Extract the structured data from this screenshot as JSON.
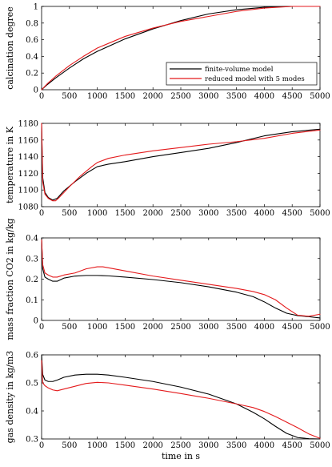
{
  "colors": {
    "finite_volume": "#000000",
    "reduced": "#e41a1c"
  },
  "chart_data": [
    {
      "type": "line",
      "ylabel": "calcination degree",
      "xlabel": "",
      "xlim": [
        0,
        5000
      ],
      "ylim": [
        0,
        1
      ],
      "xticks": [
        0,
        500,
        1000,
        1500,
        2000,
        2500,
        3000,
        3500,
        4000,
        4500,
        5000
      ],
      "yticks": [
        0,
        0.2,
        0.4,
        0.6,
        0.8,
        1
      ],
      "ytick_labels": [
        "0",
        "0.2",
        "0.4",
        "0.6",
        "0.8",
        "1"
      ],
      "legend": {
        "position": "lower-right",
        "entries": [
          "finite-volume model",
          "reduced model with 5 modes"
        ]
      },
      "series": [
        {
          "name": "finite-volume model",
          "color_key": "finite_volume",
          "x": [
            0,
            100,
            250,
            500,
            750,
            1000,
            1500,
            2000,
            2500,
            3000,
            3500,
            4000,
            4500,
            5000
          ],
          "y": [
            0,
            0.06,
            0.14,
            0.26,
            0.37,
            0.46,
            0.61,
            0.73,
            0.83,
            0.91,
            0.96,
            0.99,
            1.0,
            1.0
          ]
        },
        {
          "name": "reduced model with 5 modes",
          "color_key": "reduced",
          "x": [
            0,
            100,
            250,
            500,
            750,
            1000,
            1500,
            2000,
            2500,
            3000,
            3500,
            4000,
            4500,
            5000
          ],
          "y": [
            0,
            0.07,
            0.16,
            0.29,
            0.4,
            0.5,
            0.64,
            0.74,
            0.82,
            0.88,
            0.94,
            0.98,
            1.0,
            1.0
          ]
        }
      ]
    },
    {
      "type": "line",
      "ylabel": "temperature in K",
      "xlabel": "",
      "xlim": [
        0,
        5000
      ],
      "ylim": [
        1080,
        1180
      ],
      "xticks": [
        0,
        500,
        1000,
        1500,
        2000,
        2500,
        3000,
        3500,
        4000,
        4500,
        5000
      ],
      "yticks": [
        1080,
        1100,
        1120,
        1140,
        1160,
        1180
      ],
      "ytick_labels": [
        "1080",
        "1100",
        "1120",
        "1140",
        "1160",
        "1180"
      ],
      "series": [
        {
          "name": "finite-volume model",
          "color_key": "finite_volume",
          "x": [
            0,
            20,
            60,
            120,
            200,
            280,
            400,
            600,
            800,
            1000,
            1200,
            1500,
            2000,
            2500,
            3000,
            3500,
            4000,
            4500,
            5000
          ],
          "y": [
            1180,
            1115,
            1097,
            1091,
            1088,
            1090,
            1099,
            1110,
            1120,
            1128,
            1131,
            1134,
            1140,
            1145,
            1150,
            1157,
            1165,
            1170,
            1173
          ]
        },
        {
          "name": "reduced model with 5 modes",
          "color_key": "reduced",
          "x": [
            0,
            20,
            60,
            120,
            200,
            250,
            300,
            400,
            500,
            700,
            900,
            1000,
            1200,
            1500,
            2000,
            2500,
            3000,
            3500,
            4000,
            4500,
            5000
          ],
          "y": [
            1180,
            1110,
            1095,
            1090,
            1087,
            1087,
            1090,
            1097,
            1104,
            1117,
            1128,
            1133,
            1138,
            1142,
            1147,
            1151,
            1155,
            1158,
            1162,
            1168,
            1172
          ]
        }
      ]
    },
    {
      "type": "line",
      "ylabel": "mass fraction CO2 in kg/kg",
      "xlabel": "",
      "xlim": [
        0,
        5000
      ],
      "ylim": [
        0,
        0.4
      ],
      "xticks": [
        0,
        500,
        1000,
        1500,
        2000,
        2500,
        3000,
        3500,
        4000,
        4500,
        5000
      ],
      "yticks": [
        0,
        0.1,
        0.2,
        0.3,
        0.4
      ],
      "ytick_labels": [
        "0",
        "0.1",
        "0.2",
        "0.3",
        "0.4"
      ],
      "series": [
        {
          "name": "finite-volume model",
          "color_key": "finite_volume",
          "x": [
            0,
            20,
            60,
            120,
            200,
            280,
            400,
            600,
            800,
            1000,
            1200,
            1500,
            2000,
            2500,
            3000,
            3500,
            3800,
            4000,
            4200,
            4400,
            4600,
            4800,
            5000
          ],
          "y": [
            0.4,
            0.25,
            0.21,
            0.2,
            0.19,
            0.19,
            0.205,
            0.215,
            0.218,
            0.218,
            0.216,
            0.21,
            0.198,
            0.183,
            0.163,
            0.137,
            0.115,
            0.09,
            0.06,
            0.035,
            0.023,
            0.018,
            0.012
          ]
        },
        {
          "name": "reduced model with 5 modes",
          "color_key": "reduced",
          "x": [
            0,
            20,
            60,
            120,
            200,
            280,
            400,
            600,
            800,
            1000,
            1100,
            1200,
            1500,
            2000,
            2500,
            3000,
            3500,
            3800,
            4000,
            4200,
            4400,
            4600,
            4800,
            5000
          ],
          "y": [
            0.39,
            0.27,
            0.23,
            0.22,
            0.21,
            0.21,
            0.22,
            0.23,
            0.25,
            0.26,
            0.26,
            0.255,
            0.24,
            0.215,
            0.195,
            0.175,
            0.155,
            0.14,
            0.125,
            0.1,
            0.06,
            0.025,
            0.02,
            0.03
          ]
        }
      ]
    },
    {
      "type": "line",
      "ylabel": "gas density in kg/m3",
      "xlabel": "time in s",
      "xlim": [
        0,
        5000
      ],
      "ylim": [
        0.3,
        0.6
      ],
      "xticks": [
        0,
        500,
        1000,
        1500,
        2000,
        2500,
        3000,
        3500,
        4000,
        4500,
        5000
      ],
      "yticks": [
        0.3,
        0.4,
        0.5,
        0.6
      ],
      "ytick_labels": [
        "0.3",
        "0.4",
        "0.5",
        "0.6"
      ],
      "series": [
        {
          "name": "finite-volume model",
          "color_key": "finite_volume",
          "x": [
            0,
            20,
            60,
            120,
            200,
            280,
            400,
            600,
            800,
            1000,
            1200,
            1500,
            2000,
            2500,
            3000,
            3500,
            3800,
            4000,
            4200,
            4400,
            4600,
            4800,
            5000
          ],
          "y": [
            0.6,
            0.53,
            0.51,
            0.505,
            0.505,
            0.51,
            0.52,
            0.528,
            0.531,
            0.531,
            0.528,
            0.52,
            0.505,
            0.485,
            0.46,
            0.425,
            0.395,
            0.372,
            0.345,
            0.32,
            0.305,
            0.301,
            0.3
          ]
        },
        {
          "name": "reduced model with 5 modes",
          "color_key": "reduced",
          "x": [
            0,
            20,
            60,
            120,
            200,
            280,
            400,
            600,
            800,
            1000,
            1200,
            1500,
            2000,
            2500,
            3000,
            3500,
            3800,
            4000,
            4200,
            4400,
            4600,
            4800,
            5000
          ],
          "y": [
            0.58,
            0.5,
            0.49,
            0.482,
            0.475,
            0.472,
            0.478,
            0.488,
            0.498,
            0.502,
            0.5,
            0.492,
            0.478,
            0.462,
            0.445,
            0.425,
            0.412,
            0.398,
            0.38,
            0.36,
            0.34,
            0.318,
            0.302
          ]
        }
      ]
    }
  ]
}
